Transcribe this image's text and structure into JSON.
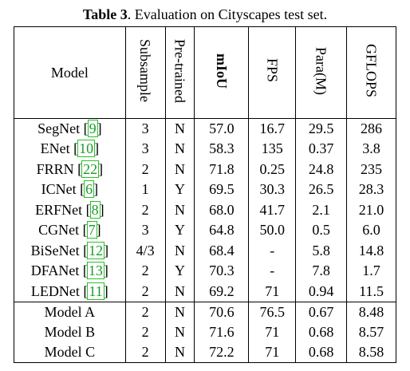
{
  "caption": {
    "label": "Table 3",
    "text": ". Evaluation on Cityscapes test set."
  },
  "headers": {
    "model": "Model",
    "subsample": "Subsample",
    "pretrained": "Pre-trained",
    "miou": "mIoU",
    "fps": "FPS",
    "params": "Para(M)",
    "gflops": "GFLOPS"
  },
  "rows": [
    {
      "model": "SegNet",
      "ref": "9",
      "subsample": "3",
      "pretrained": "N",
      "miou": "57.0",
      "fps": "16.7",
      "params": "29.5",
      "gflops": "286",
      "bold": []
    },
    {
      "model": "ENet",
      "ref": "10",
      "subsample": "3",
      "pretrained": "N",
      "miou": "58.3",
      "fps": "135",
      "params": "0.37",
      "gflops": "3.8",
      "bold": [
        "fps",
        "params"
      ]
    },
    {
      "model": "FRRN",
      "ref": "22",
      "subsample": "2",
      "pretrained": "N",
      "miou": "71.8",
      "fps": "0.25",
      "params": "24.8",
      "gflops": "235",
      "bold": []
    },
    {
      "model": "ICNet",
      "ref": "6",
      "subsample": "1",
      "pretrained": "Y",
      "miou": "69.5",
      "fps": "30.3",
      "params": "26.5",
      "gflops": "28.3",
      "bold": []
    },
    {
      "model": "ERFNet",
      "ref": "8",
      "subsample": "2",
      "pretrained": "N",
      "miou": "68.0",
      "fps": "41.7",
      "params": "2.1",
      "gflops": "21.0",
      "bold": []
    },
    {
      "model": "CGNet",
      "ref": "7",
      "subsample": "3",
      "pretrained": "Y",
      "miou": "64.8",
      "fps": "50.0",
      "params": "0.5",
      "gflops": "6.0",
      "bold": []
    },
    {
      "model": "BiSeNet",
      "ref": "12",
      "subsample": "4/3",
      "pretrained": "N",
      "miou": "68.4",
      "fps": "-",
      "params": "5.8",
      "gflops": "14.8",
      "bold": []
    },
    {
      "model": "DFANet",
      "ref": "13",
      "subsample": "2",
      "pretrained": "Y",
      "miou": "70.3",
      "fps": "-",
      "params": "7.8",
      "gflops": "1.7",
      "bold": [
        "gflops"
      ]
    },
    {
      "model": "LEDNet",
      "ref": "11",
      "subsample": "2",
      "pretrained": "N",
      "miou": "69.2",
      "fps": "71",
      "params": "0.94",
      "gflops": "11.5",
      "bold": []
    },
    {
      "model": "Model A",
      "ref": "",
      "subsample": "2",
      "pretrained": "N",
      "miou": "70.6",
      "fps": "76.5",
      "params": "0.67",
      "gflops": "8.48",
      "bold": []
    },
    {
      "model": "Model B",
      "ref": "",
      "subsample": "2",
      "pretrained": "N",
      "miou": "71.6",
      "fps": "71",
      "params": "0.68",
      "gflops": "8.57",
      "bold": []
    },
    {
      "model": "Model C",
      "ref": "",
      "subsample": "2",
      "pretrained": "N",
      "miou": "72.2",
      "fps": "71",
      "params": "0.68",
      "gflops": "8.58",
      "bold": [
        "miou"
      ]
    }
  ],
  "group_separator_before_row": 9,
  "colors": {
    "citation_text": "#1a9a2a",
    "citation_box": "#27c227"
  }
}
